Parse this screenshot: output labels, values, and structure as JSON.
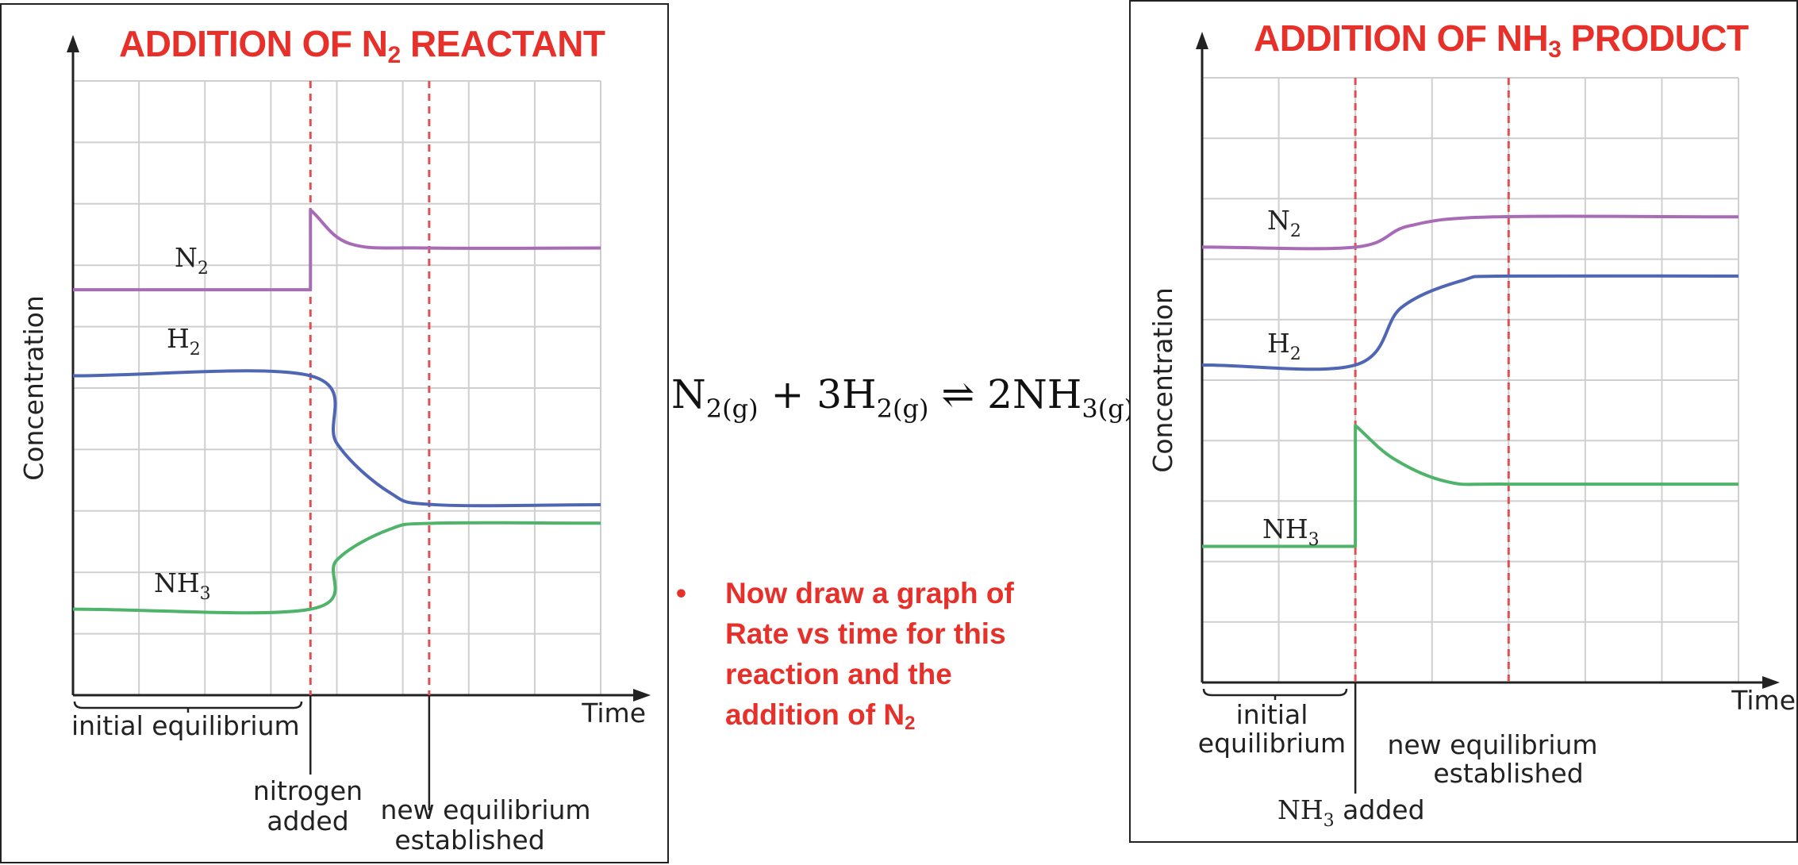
{
  "chart_data": [
    {
      "type": "line",
      "title_parts": [
        "ADDITION OF N",
        "2",
        " REACTANT"
      ],
      "xlabel": "Time",
      "ylabel": "Concentration",
      "x_range": [
        0,
        8
      ],
      "ylim": [
        0,
        10
      ],
      "grid": true,
      "series": [
        {
          "name": "N",
          "name_sub": "2",
          "color": "#a86bb5",
          "points": [
            [
              0,
              6.6
            ],
            [
              3.6,
              6.6
            ],
            [
              3.6,
              7.9
            ],
            [
              4.2,
              7.35
            ],
            [
              5.4,
              7.28
            ],
            [
              8,
              7.28
            ]
          ]
        },
        {
          "name": "H",
          "name_sub": "2",
          "color": "#4e66b3",
          "points": [
            [
              0,
              5.2
            ],
            [
              3.6,
              5.2
            ],
            [
              4.0,
              4.1
            ],
            [
              4.8,
              3.3
            ],
            [
              5.5,
              3.1
            ],
            [
              8,
              3.1
            ]
          ]
        },
        {
          "name": "NH",
          "name_sub": "3",
          "color": "#4fb36a",
          "points": [
            [
              0,
              1.4
            ],
            [
              3.6,
              1.4
            ],
            [
              4.0,
              2.2
            ],
            [
              4.8,
              2.7
            ],
            [
              5.5,
              2.8
            ],
            [
              8,
              2.8
            ]
          ]
        }
      ],
      "events": [
        {
          "x": 3.6,
          "label_lines": [
            "nitrogen",
            "added"
          ]
        },
        {
          "x": 5.4,
          "label_lines": [
            "new equilibrium",
            "established"
          ]
        }
      ],
      "bracket": {
        "x": [
          0,
          3.5
        ],
        "label": "initial equilibrium"
      }
    },
    {
      "type": "line",
      "title_parts": [
        "ADDITION OF NH",
        "3",
        " PRODUCT"
      ],
      "xlabel": "Time",
      "ylabel": "Concentration",
      "x_range": [
        0,
        7
      ],
      "ylim": [
        0,
        10
      ],
      "grid": true,
      "series": [
        {
          "name": "N",
          "name_sub": "2",
          "color": "#a86bb5",
          "points": [
            [
              0,
              7.2
            ],
            [
              2.0,
              7.2
            ],
            [
              2.7,
              7.55
            ],
            [
              3.8,
              7.7
            ],
            [
              7,
              7.7
            ]
          ]
        },
        {
          "name": "H",
          "name_sub": "2",
          "color": "#4e66b3",
          "points": [
            [
              0,
              5.25
            ],
            [
              2.0,
              5.25
            ],
            [
              2.6,
              6.2
            ],
            [
              3.4,
              6.65
            ],
            [
              4.0,
              6.72
            ],
            [
              7,
              6.72
            ]
          ]
        },
        {
          "name": "NH",
          "name_sub": "3",
          "color": "#4fb36a",
          "points": [
            [
              0,
              2.25
            ],
            [
              2.0,
              2.25
            ],
            [
              2.0,
              4.25
            ],
            [
              2.5,
              3.7
            ],
            [
              3.2,
              3.32
            ],
            [
              4.0,
              3.28
            ],
            [
              7,
              3.28
            ]
          ]
        }
      ],
      "events": [
        {
          "x": 2.0,
          "label_lines": [
            "NH",
            "3",
            " added"
          ],
          "kind": "chem"
        },
        {
          "x": 4.0,
          "label_lines": [
            "new equilibrium",
            "established"
          ]
        }
      ],
      "bracket": {
        "x": [
          0,
          1.9
        ],
        "label_lines": [
          "initial",
          "equilibrium"
        ]
      }
    }
  ],
  "equation": {
    "n2": "N",
    "n2_sub": "2(g)",
    "plus": " + 3H",
    "h2_sub": "2(g)",
    "arrow": " ⇌ 2NH",
    "nh3_sub": "3(g)"
  },
  "task": {
    "bullet": "•",
    "text": "Now draw a graph of Rate vs time for this reaction and the addition of N",
    "sub": "2"
  },
  "colors": {
    "title": "#e8302a",
    "event_line": "#e05050",
    "grid": "#cfcfcf"
  }
}
